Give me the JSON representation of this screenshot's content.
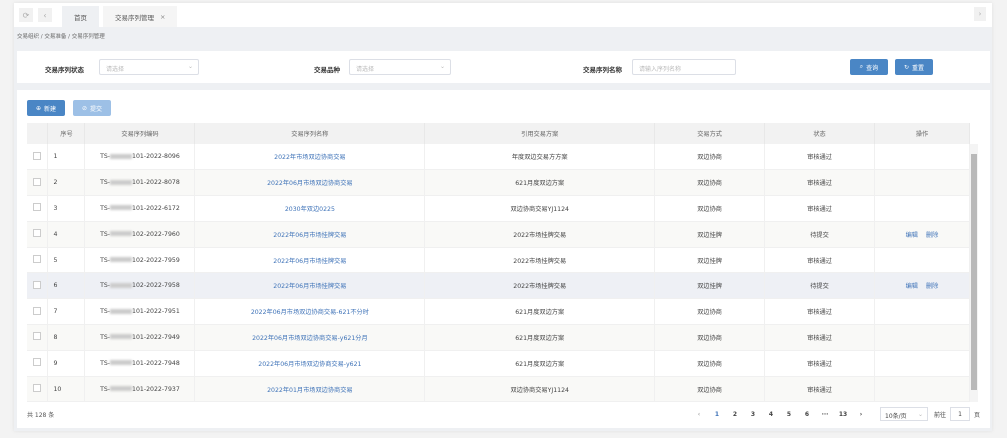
{
  "tabs": {
    "home": "首页",
    "active": "交易序列管理",
    "close": "×"
  },
  "breadcrumb": [
    "交易组织",
    "交易准备",
    "交易序列管理"
  ],
  "filters": {
    "status_label": "交易序列状态",
    "status_placeholder": "请选择",
    "variety_label": "交易品种",
    "variety_placeholder": "请选择",
    "name_label": "交易序列名称",
    "name_placeholder": "请输入序列名称",
    "search": "查询",
    "reset": "重置"
  },
  "toolbar": {
    "new": "新建",
    "submit": "提交"
  },
  "table": {
    "headers": [
      "序号",
      "交易序列编码",
      "交易序列名称",
      "引用交易方案",
      "交易方式",
      "状态",
      "操作"
    ],
    "rows": [
      {
        "no": "1",
        "prefix": "TS-",
        "code": "101-2022-8096",
        "name": "2022年市场双边协商交易",
        "plan": "年度双边交易方方案",
        "mode": "双边协商",
        "status": "审核通过",
        "ops": []
      },
      {
        "no": "2",
        "prefix": "TS-",
        "code": "101-2022-8078",
        "name": "2022年06月市场双边协商交易",
        "plan": "621月度双边方案",
        "mode": "双边协商",
        "status": "审核通过",
        "ops": []
      },
      {
        "no": "3",
        "prefix": "TS-",
        "code": "101-2022-6172",
        "name": "2030年双边0225",
        "plan": "双边协商交易YJ1124",
        "mode": "双边协商",
        "status": "审核通过",
        "ops": []
      },
      {
        "no": "4",
        "prefix": "TS-",
        "code": "102-2022-7960",
        "name": "2022年06月市场挂牌交易",
        "plan": "2022市场挂牌交易",
        "mode": "双边挂牌",
        "status": "待提交",
        "ops": [
          "编辑",
          "删除"
        ]
      },
      {
        "no": "5",
        "prefix": "TS-",
        "code": "102-2022-7959",
        "name": "2022年06月市场挂牌交易",
        "plan": "2022市场挂牌交易",
        "mode": "双边挂牌",
        "status": "审核通过",
        "ops": []
      },
      {
        "no": "6",
        "prefix": "TS-",
        "code": "102-2022-7958",
        "name": "2022年06月市场挂牌交易",
        "plan": "2022市场挂牌交易",
        "mode": "双边挂牌",
        "status": "待提交",
        "ops": [
          "编辑",
          "删除"
        ]
      },
      {
        "no": "7",
        "prefix": "TS-",
        "code": "101-2022-7951",
        "name": "2022年06月市场双边协商交易-621不分时",
        "plan": "621月度双边方案",
        "mode": "双边协商",
        "status": "审核通过",
        "ops": []
      },
      {
        "no": "8",
        "prefix": "TS-",
        "code": "101-2022-7949",
        "name": "2022年06月市场双边协商交易-y621分月",
        "plan": "621月度双边方案",
        "mode": "双边协商",
        "status": "审核通过",
        "ops": []
      },
      {
        "no": "9",
        "prefix": "TS-",
        "code": "101-2022-7948",
        "name": "2022年06月市场双边协商交易-y621",
        "plan": "621月度双边方案",
        "mode": "双边协商",
        "status": "审核通过",
        "ops": []
      },
      {
        "no": "10",
        "prefix": "TS-",
        "code": "101-2022-7937",
        "name": "2022年01月市场双边协商交易",
        "plan": "双边协商交易YJ1124",
        "mode": "双边协商",
        "status": "审核通过",
        "ops": []
      }
    ]
  },
  "footer": {
    "total": "共 128 条",
    "pages": [
      "1",
      "2",
      "3",
      "4",
      "5",
      "6",
      "···",
      "13"
    ],
    "current_page": "1",
    "page_size": "10条/页",
    "goto_label": "前往",
    "goto_value": "1",
    "goto_suffix": "页"
  },
  "colors": {
    "primary": "#4a86c5",
    "link": "#3f73b8"
  }
}
